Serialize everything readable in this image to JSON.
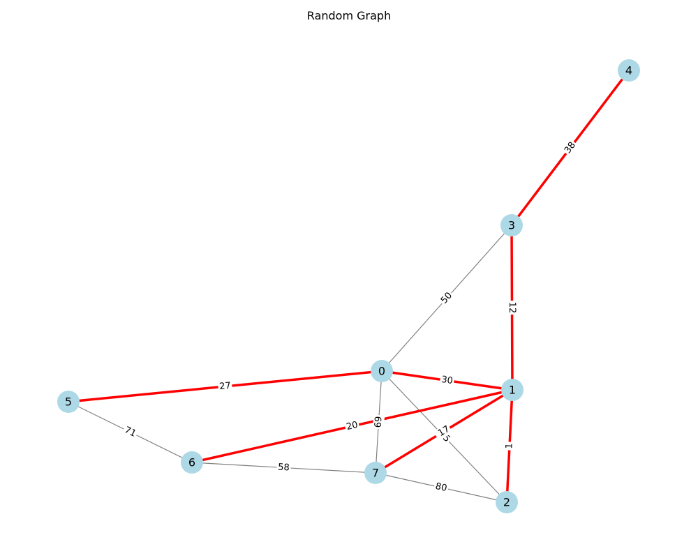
{
  "title": "Random Graph",
  "colors": {
    "node_fill": "#add8e6",
    "edge_default": "#808080",
    "edge_highlight": "#ff0000",
    "label_bg": "#ffffff",
    "text": "#000000"
  },
  "nodes": [
    {
      "id": "0",
      "label": "0"
    },
    {
      "id": "1",
      "label": "1"
    },
    {
      "id": "2",
      "label": "2"
    },
    {
      "id": "3",
      "label": "3"
    },
    {
      "id": "4",
      "label": "4"
    },
    {
      "id": "5",
      "label": "5"
    },
    {
      "id": "6",
      "label": "6"
    },
    {
      "id": "7",
      "label": "7"
    }
  ],
  "edges": [
    {
      "source": "0",
      "target": "3",
      "weight": "50",
      "highlighted": false
    },
    {
      "source": "0",
      "target": "7",
      "weight": "69",
      "highlighted": false
    },
    {
      "source": "0",
      "target": "2",
      "weight": "25",
      "highlighted": false
    },
    {
      "source": "5",
      "target": "6",
      "weight": "71",
      "highlighted": false
    },
    {
      "source": "6",
      "target": "7",
      "weight": "58",
      "highlighted": false
    },
    {
      "source": "7",
      "target": "2",
      "weight": "80",
      "highlighted": false
    },
    {
      "source": "4",
      "target": "3",
      "weight": "38",
      "highlighted": true
    },
    {
      "source": "3",
      "target": "1",
      "weight": "12",
      "highlighted": true
    },
    {
      "source": "5",
      "target": "0",
      "weight": "27",
      "highlighted": true
    },
    {
      "source": "0",
      "target": "1",
      "weight": "30",
      "highlighted": true
    },
    {
      "source": "6",
      "target": "1",
      "weight": "20",
      "highlighted": true
    },
    {
      "source": "1",
      "target": "7",
      "weight": "17",
      "highlighted": true
    },
    {
      "source": "1",
      "target": "2",
      "weight": "1",
      "highlighted": true
    }
  ]
}
